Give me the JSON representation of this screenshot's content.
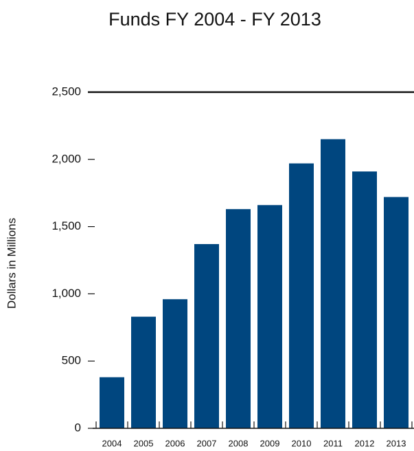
{
  "chart_data": {
    "type": "bar",
    "title": "Funds FY 2004 - FY 2013",
    "y_axis_label": "Dollars in Millions",
    "categories": [
      "2004",
      "2005",
      "2006",
      "2007",
      "2008",
      "2009",
      "2010",
      "2011",
      "2012",
      "2013"
    ],
    "values": [
      380,
      830,
      960,
      1370,
      1630,
      1660,
      1970,
      2150,
      1910,
      1720
    ],
    "color": "#00467f",
    "ylim": [
      0,
      2500
    ],
    "yticks": [
      0,
      500,
      {
        "value": 1000,
        "label": "1,000"
      },
      {
        "value": 1500,
        "label": "1,500"
      },
      {
        "value": 2000,
        "label": "2,000"
      },
      {
        "value": 2500,
        "label": "2,500"
      }
    ],
    "grid": false
  }
}
